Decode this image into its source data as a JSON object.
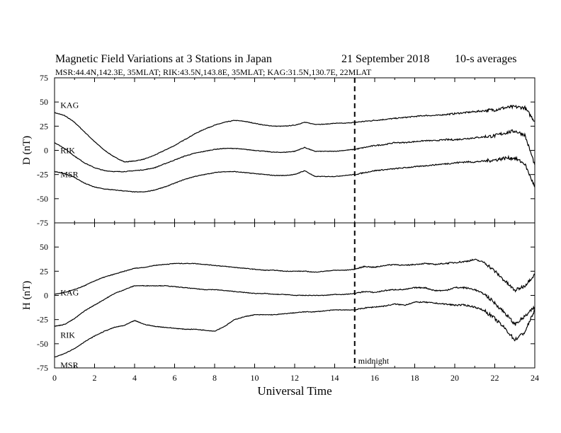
{
  "title": {
    "main": "Magnetic Field Variations at 3 Stations in Japan",
    "date": "21 September 2018",
    "averaging": "10-s averages",
    "stations_line": "MSR:44.4N,142.3E, 35MLAT;  RIK:43.5N,143.8E, 35MLAT;  KAG:31.5N,130.7E, 22MLAT"
  },
  "annotation": {
    "midnight": "midnight",
    "midnight_ut": 15
  },
  "chart_data": [
    {
      "type": "line",
      "panel": "D",
      "ylabel": "D (nT)",
      "xlim": [
        0,
        24
      ],
      "ylim": [
        -75,
        75
      ],
      "yticks": [
        75,
        50,
        25,
        0,
        -25,
        -50,
        -75
      ],
      "x": [
        0,
        0.5,
        1,
        1.5,
        2,
        2.5,
        3,
        3.5,
        4,
        4.5,
        5,
        5.5,
        6,
        6.5,
        7,
        7.5,
        8,
        8.5,
        9,
        9.5,
        10,
        10.5,
        11,
        11.5,
        12,
        12.5,
        13,
        13.5,
        14,
        14.5,
        15,
        15.5,
        16,
        16.5,
        17,
        17.5,
        18,
        18.5,
        19,
        19.5,
        20,
        20.5,
        21,
        21.5,
        22,
        22.5,
        23,
        23.5,
        24
      ],
      "series": [
        {
          "name": "KAG",
          "label_x": 0.15,
          "label_y": 47,
          "values": [
            39,
            36,
            29,
            19,
            9,
            0,
            -7,
            -12,
            -11,
            -9,
            -5,
            0,
            5,
            11,
            17,
            22,
            26,
            29,
            31,
            30,
            28,
            26,
            25,
            25,
            26,
            29,
            27,
            27,
            28,
            28,
            29,
            30,
            31,
            32,
            33,
            34,
            35,
            36,
            36,
            37,
            38,
            39,
            40,
            41,
            42,
            44,
            45,
            44,
            30
          ]
        },
        {
          "name": "RIK",
          "label_x": 0.15,
          "label_y": 0,
          "values": [
            8,
            2,
            -6,
            -13,
            -18,
            -21,
            -22,
            -22,
            -21,
            -20,
            -18,
            -14,
            -10,
            -6,
            -3,
            -1,
            1,
            2,
            2,
            1,
            0,
            -1,
            -2,
            -2,
            -1,
            3,
            -1,
            -1,
            -1,
            0,
            1,
            3,
            5,
            6,
            8,
            8,
            9,
            10,
            10,
            11,
            11,
            12,
            13,
            14,
            15,
            18,
            20,
            16,
            -15
          ]
        },
        {
          "name": "MSR",
          "label_x": 0.15,
          "label_y": -25,
          "values": [
            -22,
            -24,
            -28,
            -34,
            -38,
            -40,
            -41,
            -42,
            -43,
            -43,
            -41,
            -38,
            -34,
            -30,
            -27,
            -25,
            -23,
            -22,
            -22,
            -23,
            -24,
            -25,
            -26,
            -26,
            -25,
            -21,
            -27,
            -27,
            -27,
            -26,
            -25,
            -23,
            -21,
            -20,
            -19,
            -18,
            -17,
            -16,
            -15,
            -14,
            -13,
            -12,
            -12,
            -11,
            -10,
            -8,
            -8,
            -14,
            -38
          ]
        }
      ]
    },
    {
      "type": "line",
      "panel": "H",
      "ylabel": "H (nT)",
      "xlabel": "Universal Time",
      "xlim": [
        0,
        24
      ],
      "ylim": [
        -75,
        75
      ],
      "yticks": [
        50,
        25,
        0,
        -25,
        -50,
        -75
      ],
      "xticks": [
        0,
        2,
        4,
        6,
        8,
        10,
        12,
        14,
        16,
        18,
        20,
        22,
        24
      ],
      "x": [
        0,
        0.5,
        1,
        1.5,
        2,
        2.5,
        3,
        3.5,
        4,
        4.5,
        5,
        5.5,
        6,
        6.5,
        7,
        7.5,
        8,
        8.5,
        9,
        9.5,
        10,
        10.5,
        11,
        11.5,
        12,
        12.5,
        13,
        13.5,
        14,
        14.5,
        15,
        15.5,
        16,
        16.5,
        17,
        17.5,
        18,
        18.5,
        19,
        19.5,
        20,
        20.5,
        21,
        21.5,
        22,
        22.5,
        23,
        23.5,
        24
      ],
      "series": [
        {
          "name": "KAG",
          "label_x": 0.15,
          "label_y": 3,
          "values": [
            1,
            3,
            6,
            10,
            15,
            19,
            22,
            25,
            28,
            29,
            31,
            32,
            33,
            33,
            33,
            32,
            31,
            30,
            29,
            28,
            27,
            26,
            26,
            25,
            25,
            25,
            24,
            25,
            26,
            26,
            27,
            30,
            29,
            31,
            32,
            31,
            32,
            33,
            32,
            33,
            34,
            35,
            37,
            34,
            25,
            15,
            5,
            10,
            22
          ]
        },
        {
          "name": "RIK",
          "label_x": 0.15,
          "label_y": -41,
          "values": [
            -32,
            -30,
            -24,
            -16,
            -10,
            -4,
            2,
            6,
            10,
            10,
            10,
            10,
            9,
            8,
            7,
            6,
            6,
            5,
            4,
            3,
            2,
            2,
            1,
            1,
            0,
            0,
            0,
            0,
            1,
            1,
            2,
            4,
            3,
            5,
            6,
            6,
            8,
            8,
            5,
            5,
            8,
            8,
            6,
            1,
            -8,
            -18,
            -30,
            -22,
            -12
          ]
        },
        {
          "name": "MSR",
          "label_x": 0.15,
          "label_y": -72,
          "values": [
            -64,
            -60,
            -55,
            -48,
            -42,
            -37,
            -33,
            -31,
            -26,
            -30,
            -32,
            -33,
            -34,
            -35,
            -35,
            -36,
            -37,
            -32,
            -25,
            -22,
            -20,
            -20,
            -20,
            -19,
            -18,
            -17,
            -17,
            -16,
            -15,
            -15,
            -15,
            -13,
            -12,
            -11,
            -9,
            -10,
            -7,
            -7,
            -8,
            -9,
            -10,
            -10,
            -12,
            -16,
            -24,
            -34,
            -46,
            -38,
            -15
          ]
        }
      ]
    }
  ]
}
